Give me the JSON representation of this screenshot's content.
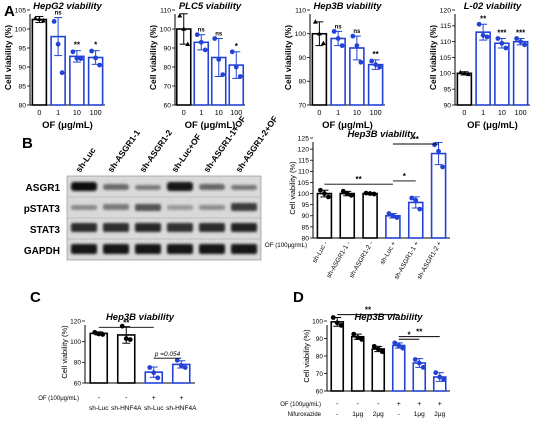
{
  "panel_labels": [
    "A",
    "B",
    "C",
    "D"
  ],
  "colors": {
    "black": "#000000",
    "blue": "#2343d6",
    "axis": "#000000"
  },
  "chart_data": [
    {
      "id": "A1",
      "type": "bar",
      "title": "HepG2 viability",
      "xlabel": "OF (μg/mL)",
      "ylabel": "Cell viability (%)",
      "ylim": [
        80,
        105
      ],
      "yticks": [
        "80",
        "85",
        "90",
        "95",
        "100",
        "105"
      ],
      "categories": [
        "0",
        "1",
        "10",
        "100"
      ],
      "values": [
        102.5,
        98,
        92.8,
        92.5
      ],
      "errors": [
        0.8,
        5,
        1.5,
        1.8
      ],
      "points": [
        [
          102.8,
          102.6,
          102.2
        ],
        [
          102,
          96,
          88.5
        ],
        [
          94,
          92.3,
          92.2
        ],
        [
          94.2,
          92.4,
          90.5
        ]
      ],
      "significance": [
        "",
        "ns",
        "**",
        "*"
      ],
      "bar_colors": [
        "black",
        "blue",
        "blue",
        "blue"
      ]
    },
    {
      "id": "A2",
      "type": "bar",
      "title": "PLC5 viability",
      "xlabel": "OF (μg/mL)",
      "ylabel": "Cell viability (%)",
      "ylim": [
        60,
        110
      ],
      "yticks": [
        "60",
        "70",
        "80",
        "90",
        "100",
        "110"
      ],
      "categories": [
        "0",
        "1",
        "10",
        "100"
      ],
      "values": [
        100,
        93,
        85,
        81
      ],
      "errors": [
        8,
        4,
        10,
        7
      ],
      "points": [
        [
          107,
          100,
          92
        ],
        [
          97,
          93,
          89
        ],
        [
          95,
          84,
          76
        ],
        [
          88,
          80,
          75
        ]
      ],
      "significance": [
        "",
        "ns",
        "ns",
        "*"
      ],
      "bar_colors": [
        "black",
        "blue",
        "blue",
        "blue"
      ]
    },
    {
      "id": "A3",
      "type": "bar",
      "title": "Hep3B viability",
      "xlabel": "OF (μg/mL)",
      "ylabel": "Cell viability (%)",
      "ylim": [
        70,
        110
      ],
      "yticks": [
        "70",
        "80",
        "90",
        "100",
        "110"
      ],
      "categories": [
        "0",
        "1",
        "10",
        "100"
      ],
      "values": [
        100,
        98,
        94,
        87
      ],
      "errors": [
        5,
        3,
        5,
        2
      ],
      "points": [
        [
          105,
          100,
          96
        ],
        [
          101,
          98,
          95
        ],
        [
          99,
          95,
          88
        ],
        [
          88.5,
          87,
          86
        ]
      ],
      "significance": [
        "",
        "ns",
        "ns",
        "**"
      ],
      "bar_colors": [
        "black",
        "blue",
        "blue",
        "blue"
      ]
    },
    {
      "id": "A4",
      "type": "bar",
      "title": "L-02 viability",
      "xlabel": "OF (μg/mL)",
      "ylabel": "Cell viability (%)",
      "ylim": [
        90,
        120
      ],
      "yticks": [
        "90",
        "95",
        "100",
        "105",
        "110",
        "115",
        "120"
      ],
      "categories": [
        "0",
        "1",
        "10",
        "100"
      ],
      "values": [
        100,
        113,
        109.5,
        110
      ],
      "errors": [
        0.5,
        2.5,
        1.5,
        1
      ],
      "points": [
        [
          100.3,
          100,
          99.7
        ],
        [
          115.5,
          112,
          111.5
        ],
        [
          111,
          109.5,
          108
        ],
        [
          111,
          110,
          109
        ]
      ],
      "significance": [
        "",
        "**",
        "***",
        "***"
      ],
      "bar_colors": [
        "black",
        "blue",
        "blue",
        "blue"
      ]
    },
    {
      "id": "B",
      "type": "bar",
      "title": "Hep3B viability",
      "ylabel": "Cell viability (%)",
      "ylim": [
        80,
        125
      ],
      "yticks": [
        "80",
        "85",
        "90",
        "95",
        "100",
        "105",
        "110",
        "115",
        "120",
        "125"
      ],
      "categories": [
        "sh-Luc",
        "sh-ASGR1-1",
        "sh-ASGR1-2",
        "sh-Luc",
        "sh-ASGR1-1",
        "sh-ASGR1-2"
      ],
      "row_label": "OF (100μg/mL)",
      "row_values": [
        "-",
        "-",
        "-",
        "+",
        "+",
        "+"
      ],
      "values": [
        100,
        100,
        100,
        90,
        96,
        118
      ],
      "errors": [
        1.5,
        1,
        0.3,
        1,
        2.5,
        5
      ],
      "points": [
        [
          101.5,
          100,
          98.5
        ],
        [
          101,
          100,
          99.2
        ],
        [
          100.2,
          100,
          99.8
        ],
        [
          91,
          90,
          89.2
        ],
        [
          98,
          97,
          93
        ],
        [
          122,
          119,
          112
        ]
      ],
      "bar_colors": [
        "black",
        "black",
        "black",
        "blue",
        "blue",
        "blue"
      ],
      "brackets": [
        {
          "from": 0,
          "to": 3,
          "label": "**"
        },
        {
          "from": 3,
          "to": 4,
          "label": "*"
        },
        {
          "from": 3,
          "to": 5,
          "label": "**"
        }
      ]
    },
    {
      "id": "C",
      "type": "bar",
      "title": "Hep3B viability",
      "ylabel": "Cell viability (%)",
      "ylim": [
        60,
        120
      ],
      "yticks": [
        "60",
        "80",
        "100",
        "120"
      ],
      "categories": [
        "sh-Luc",
        "sh-HNF4A",
        "sh-Luc",
        "sh-HNF4A"
      ],
      "row_label": "OF (100μg/mL)",
      "row_values": [
        "-",
        "-",
        "+",
        "+"
      ],
      "values": [
        108,
        106.5,
        70.5,
        78
      ],
      "errors": [
        1.5,
        8,
        5,
        3.5
      ],
      "points": [
        [
          109,
          107.5,
          107
        ],
        [
          115,
          103,
          102
        ],
        [
          75,
          70,
          65
        ],
        [
          82,
          77,
          75
        ]
      ],
      "bar_colors": [
        "black",
        "black",
        "blue",
        "blue"
      ],
      "brackets": [
        {
          "from": 0,
          "to": 2,
          "label": "**"
        },
        {
          "from": 2,
          "to": 3,
          "label": "p =0.054"
        }
      ]
    },
    {
      "id": "D",
      "type": "bar",
      "title": "Hep3B viability",
      "ylabel": "Cell viability (%)",
      "ylim": [
        60,
        100
      ],
      "yticks": [
        "60",
        "70",
        "80",
        "90",
        "100"
      ],
      "categories": [
        "1",
        "2",
        "3",
        "4",
        "5",
        "6"
      ],
      "row_label": "OF (100μg/mL)",
      "row_values": [
        "-",
        "-",
        "-",
        "+",
        "+",
        "+"
      ],
      "row2_label": "Nifuroxazide",
      "row2_values": [
        "-",
        "1μg",
        "2μg",
        "-",
        "1μg",
        "2μg"
      ],
      "values": [
        99.5,
        91,
        84,
        86,
        76,
        68
      ],
      "errors": [
        2.5,
        1.5,
        1.5,
        1.5,
        2.5,
        2.5
      ],
      "points": [
        [
          102,
          99,
          97.5
        ],
        [
          92.5,
          90.5,
          89.5
        ],
        [
          85.5,
          84,
          82.5
        ],
        [
          87.5,
          86,
          84.5
        ],
        [
          78,
          76,
          73.5
        ],
        [
          70.5,
          68,
          66.5
        ]
      ],
      "bar_colors": [
        "black",
        "black",
        "black",
        "blue",
        "blue",
        "blue"
      ],
      "brackets": [
        {
          "from": 0,
          "to": 3,
          "label": "**"
        },
        {
          "from": 3,
          "to": 4,
          "label": "*"
        },
        {
          "from": 3,
          "to": 5,
          "label": "**"
        }
      ]
    }
  ],
  "western_blot": {
    "lanes": [
      "sh-Luc",
      "sh-ASGR1-1",
      "sh-ASGR1-2",
      "sh-Luc+OF",
      "sh-ASGR1-1+OF",
      "sh-ASGR1-2+OF"
    ],
    "rows": [
      "ASGR1",
      "pSTAT3",
      "STAT3",
      "GAPDH"
    ]
  }
}
